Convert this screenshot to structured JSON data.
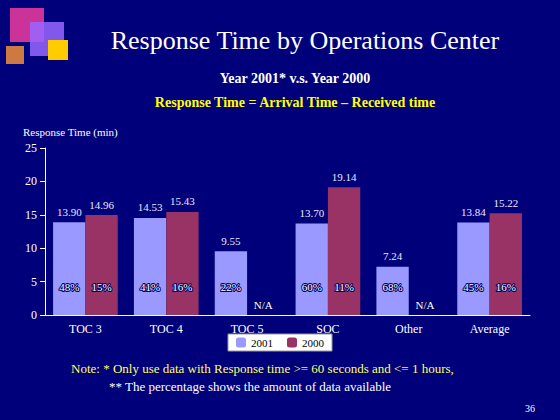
{
  "chart_data": {
    "type": "bar",
    "title": "Response Time by Operations Center",
    "subtitle": "Year 2001* v.s. Year 2000",
    "annotations": [
      "Response Time = Arrival Time – Received time",
      "Note: * Only use data with Response time >= 60 seconds and <= 1 hours,",
      "** The percentage shows the amount of data available",
      "36"
    ],
    "y_label": "Response Time (min)",
    "categories": [
      "TOC 3",
      "TOC 4",
      "TOC 5",
      "SOC",
      "Other",
      "Average"
    ],
    "series": [
      {
        "name": "2001",
        "color": "#9999ff",
        "values": [
          13.9,
          14.53,
          9.55,
          13.7,
          7.24,
          13.84
        ],
        "value_labels": [
          "13.90",
          "14.53",
          "9.55",
          "13.70",
          "7.24",
          "13.84"
        ],
        "data_available_labels": [
          "48%",
          "41%",
          "22%",
          "60%",
          "68%",
          "45%"
        ]
      },
      {
        "name": "2000",
        "color": "#993366",
        "values": [
          14.96,
          15.43,
          null,
          19.14,
          null,
          15.22
        ],
        "value_labels": [
          "14.96",
          "15.43",
          null,
          "19.14",
          null,
          "15.22"
        ],
        "data_available_labels": [
          "15%",
          "16%",
          "N/A",
          "11%",
          "N/A",
          "16%"
        ]
      }
    ],
    "ylim": [
      0,
      25
    ],
    "yticks": [
      0,
      5,
      10,
      15,
      20,
      25
    ],
    "grid": false,
    "legend": "bottom",
    "data_labels": true
  }
}
